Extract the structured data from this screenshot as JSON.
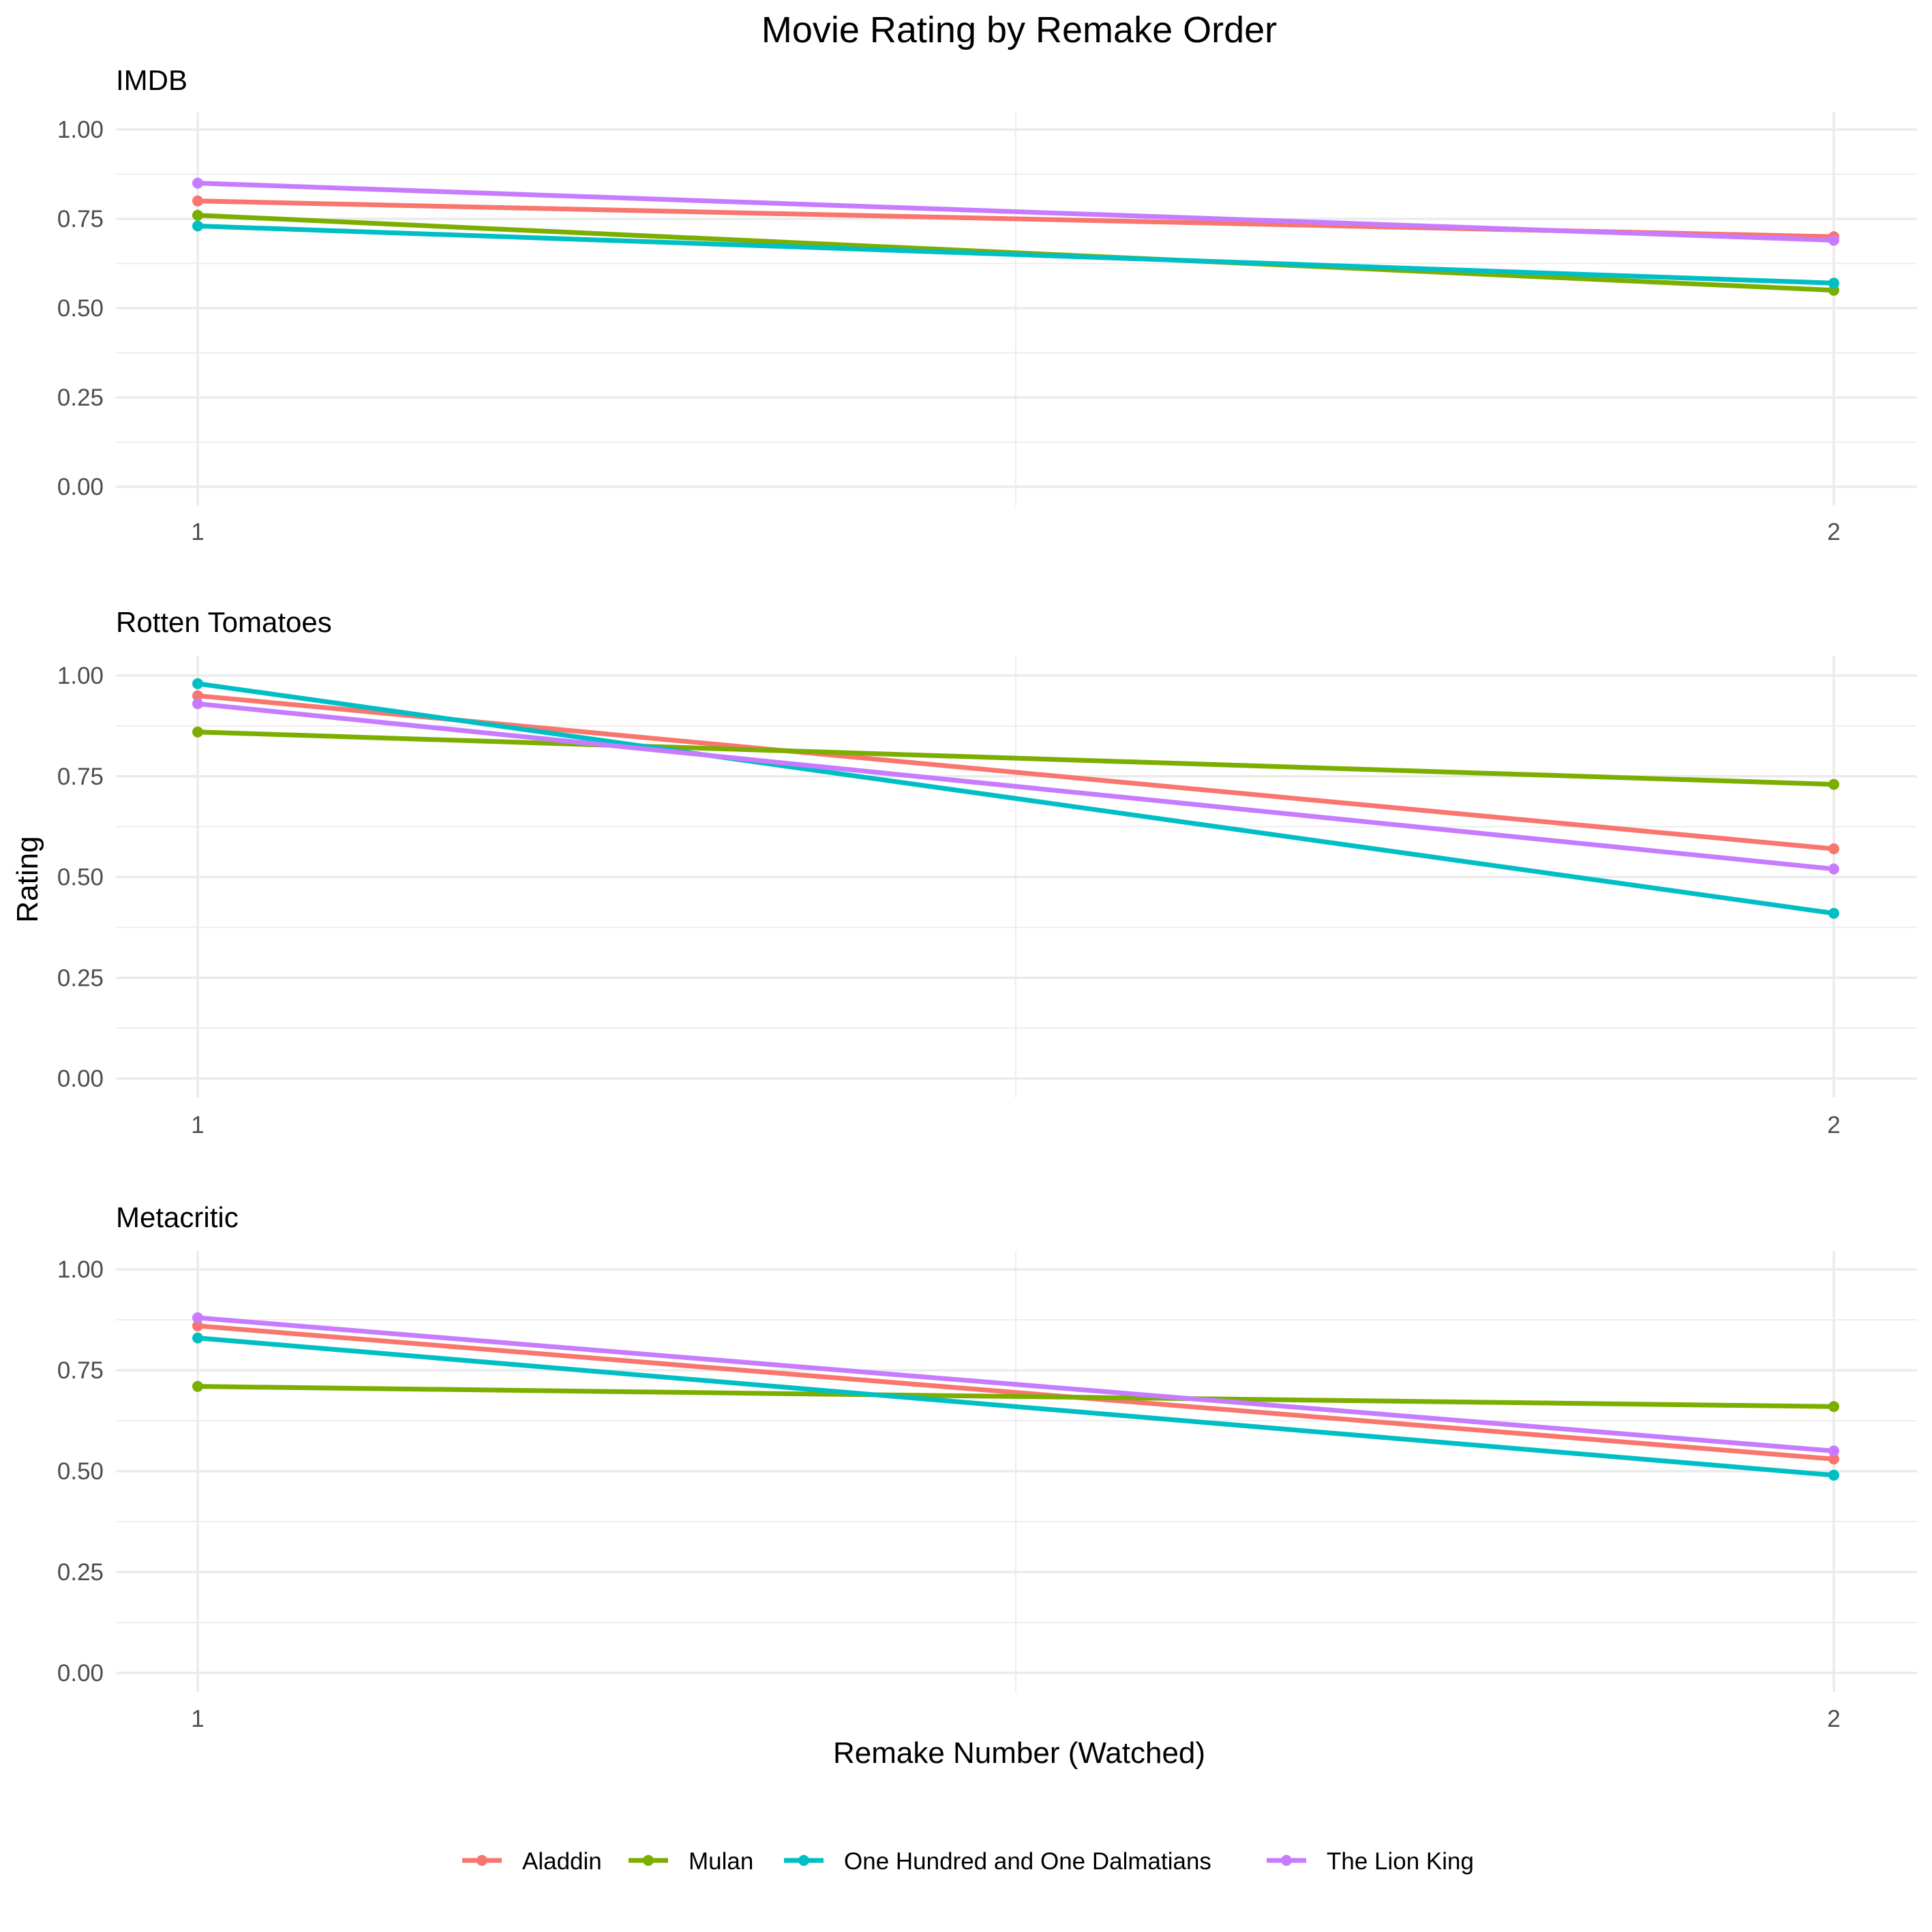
{
  "chart_data": {
    "type": "line",
    "title": "Movie Rating by Remake Order",
    "xlabel": "Remake Number (Watched)",
    "ylabel": "Rating",
    "x": [
      1,
      2
    ],
    "x_tick_labels": [
      "1",
      "2"
    ],
    "ylim": [
      0,
      1
    ],
    "y_tick_labels": [
      "0.00",
      "0.25",
      "0.50",
      "0.75",
      "1.00"
    ],
    "grid": true,
    "legend_position": "bottom",
    "colors": {
      "Aladdin": "#F8766D",
      "Mulan": "#7CAE00",
      "One Hundred and One Dalmatians": "#00BFC4",
      "The Lion King": "#C77CFF"
    },
    "panels": [
      {
        "title": "IMDB",
        "series": [
          {
            "name": "Aladdin",
            "values": [
              0.8,
              0.7
            ]
          },
          {
            "name": "Mulan",
            "values": [
              0.76,
              0.55
            ]
          },
          {
            "name": "One Hundred and One Dalmatians",
            "values": [
              0.73,
              0.57
            ]
          },
          {
            "name": "The Lion King",
            "values": [
              0.85,
              0.69
            ]
          }
        ]
      },
      {
        "title": "Rotten Tomatoes",
        "series": [
          {
            "name": "Aladdin",
            "values": [
              0.95,
              0.57
            ]
          },
          {
            "name": "Mulan",
            "values": [
              0.86,
              0.73
            ]
          },
          {
            "name": "One Hundred and One Dalmatians",
            "values": [
              0.98,
              0.41
            ]
          },
          {
            "name": "The Lion King",
            "values": [
              0.93,
              0.52
            ]
          }
        ]
      },
      {
        "title": "Metacritic",
        "series": [
          {
            "name": "Aladdin",
            "values": [
              0.86,
              0.53
            ]
          },
          {
            "name": "Mulan",
            "values": [
              0.71,
              0.66
            ]
          },
          {
            "name": "One Hundred and One Dalmatians",
            "values": [
              0.83,
              0.49
            ]
          },
          {
            "name": "The Lion King",
            "values": [
              0.88,
              0.55
            ]
          }
        ]
      }
    ],
    "legend": [
      "Aladdin",
      "Mulan",
      "One Hundred and One Dalmatians",
      "The Lion King"
    ]
  }
}
